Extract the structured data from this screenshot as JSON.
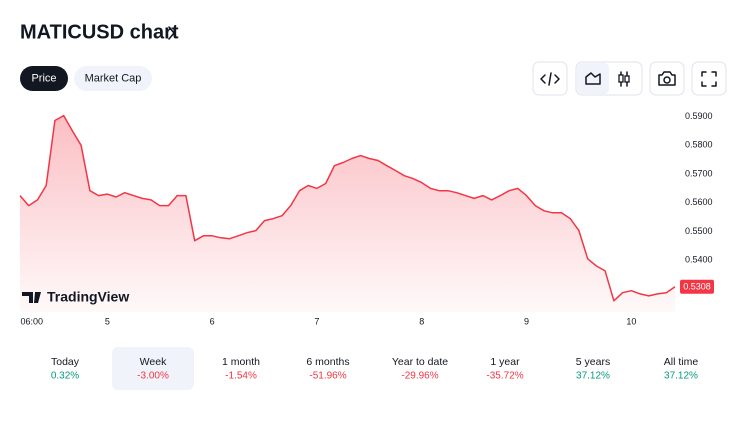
{
  "header": {
    "title": "MATICUSD chart",
    "tabs": [
      "Price",
      "Market Cap"
    ],
    "active_tab": 0
  },
  "chart_data": {
    "type": "area",
    "color": "#f23645",
    "values": [
      0.5625,
      0.559,
      0.561,
      0.566,
      0.5886,
      0.5903,
      0.585,
      0.58,
      0.5642,
      0.5625,
      0.563,
      0.562,
      0.5635,
      0.5625,
      0.5615,
      0.561,
      0.559,
      0.559,
      0.5625,
      0.5625,
      0.5468,
      0.5485,
      0.5485,
      0.5478,
      0.5475,
      0.5485,
      0.5496,
      0.5503,
      0.5538,
      0.5545,
      0.5555,
      0.559,
      0.5642,
      0.566,
      0.565,
      0.5667,
      0.5729,
      0.574,
      0.5754,
      0.5764,
      0.5754,
      0.5747,
      0.5729,
      0.5712,
      0.5694,
      0.5684,
      0.567,
      0.565,
      0.5642,
      0.5642,
      0.5635,
      0.5625,
      0.5615,
      0.5625,
      0.561,
      0.5625,
      0.5642,
      0.565,
      0.5625,
      0.559,
      0.5572,
      0.5565,
      0.5565,
      0.5545,
      0.5503,
      0.5405,
      0.538,
      0.5363,
      0.5259,
      0.5287,
      0.5294,
      0.5283,
      0.5276,
      0.5283,
      0.5287,
      0.5308
    ],
    "xlim": [
      0,
      75
    ],
    "xticks": [
      {
        "value": 1,
        "label": "06:00"
      },
      {
        "value": 10,
        "label": "5"
      },
      {
        "value": 22,
        "label": "6"
      },
      {
        "value": 34,
        "label": "7"
      },
      {
        "value": 46,
        "label": "8"
      },
      {
        "value": 58,
        "label": "9"
      },
      {
        "value": 70,
        "label": "10"
      }
    ],
    "ylim": [
      0.522,
      0.594
    ],
    "yticks": [
      {
        "value": 0.59,
        "label": "0.5900"
      },
      {
        "value": 0.58,
        "label": "0.5800"
      },
      {
        "value": 0.57,
        "label": "0.5700"
      },
      {
        "value": 0.56,
        "label": "0.5600"
      },
      {
        "value": 0.55,
        "label": "0.5500"
      },
      {
        "value": 0.54,
        "label": "0.5400"
      }
    ],
    "last_label": "0.5308",
    "grid": false,
    "watermark": "TradingView"
  },
  "periods": [
    {
      "label": "Today",
      "change": "0.32%",
      "color": "#089981"
    },
    {
      "label": "Week",
      "change": "-3.00%",
      "color": "#f23645"
    },
    {
      "label": "1 month",
      "change": "-1.54%",
      "color": "#f23645"
    },
    {
      "label": "6 months",
      "change": "-51.96%",
      "color": "#f23645"
    },
    {
      "label": "Year to date",
      "change": "-29.96%",
      "color": "#f23645"
    },
    {
      "label": "1 year",
      "change": "-35.72%",
      "color": "#f23645"
    },
    {
      "label": "5 years",
      "change": "37.12%",
      "color": "#089981"
    },
    {
      "label": "All time",
      "change": "37.12%",
      "color": "#089981"
    }
  ],
  "active_period": 1
}
